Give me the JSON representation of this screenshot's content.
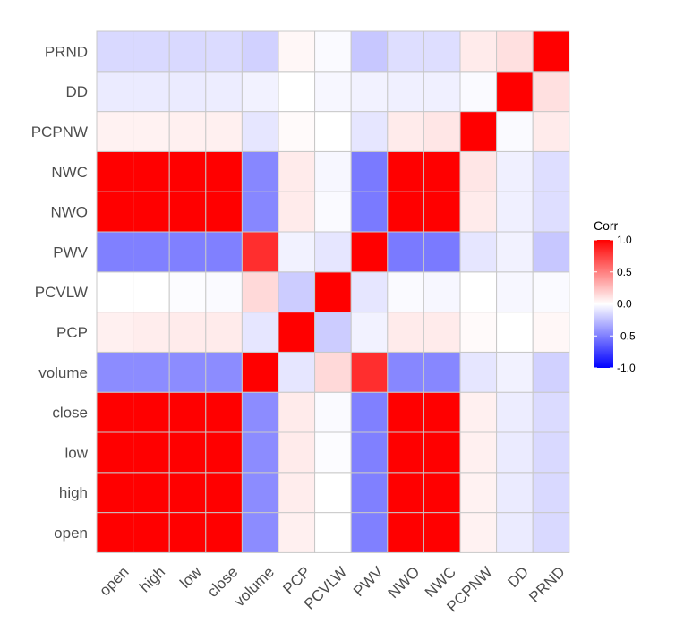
{
  "chart_data": {
    "type": "heatmap",
    "variables": [
      "open",
      "high",
      "low",
      "close",
      "volume",
      "PCP",
      "PCVLW",
      "PWV",
      "NWO",
      "NWC",
      "PCPNW",
      "DD",
      "PRND"
    ],
    "matrix": [
      [
        1.0,
        1.0,
        1.0,
        1.0,
        -0.45,
        0.06,
        0.0,
        -0.5,
        1.0,
        1.0,
        0.05,
        -0.08,
        -0.15
      ],
      [
        1.0,
        1.0,
        1.0,
        1.0,
        -0.45,
        0.07,
        0.0,
        -0.5,
        1.0,
        1.0,
        0.05,
        -0.08,
        -0.15
      ],
      [
        1.0,
        1.0,
        1.0,
        1.0,
        -0.45,
        0.08,
        -0.01,
        -0.5,
        1.0,
        1.0,
        0.06,
        -0.08,
        -0.15
      ],
      [
        1.0,
        1.0,
        1.0,
        1.0,
        -0.45,
        0.08,
        -0.02,
        -0.5,
        1.0,
        1.0,
        0.06,
        -0.07,
        -0.14
      ],
      [
        -0.45,
        -0.45,
        -0.45,
        -0.45,
        1.0,
        -0.1,
        0.15,
        0.82,
        -0.47,
        -0.47,
        -0.1,
        -0.05,
        -0.18
      ],
      [
        0.06,
        0.07,
        0.08,
        0.08,
        -0.1,
        1.0,
        -0.2,
        -0.05,
        0.08,
        0.08,
        0.02,
        0.0,
        0.03
      ],
      [
        0.0,
        0.0,
        -0.01,
        -0.02,
        0.15,
        -0.2,
        1.0,
        -0.1,
        -0.02,
        -0.03,
        0.0,
        -0.03,
        -0.02
      ],
      [
        -0.5,
        -0.5,
        -0.5,
        -0.5,
        0.82,
        -0.05,
        -0.1,
        1.0,
        -0.52,
        -0.52,
        -0.1,
        -0.05,
        -0.22
      ],
      [
        1.0,
        1.0,
        1.0,
        1.0,
        -0.47,
        0.08,
        -0.02,
        -0.52,
        1.0,
        1.0,
        0.08,
        -0.06,
        -0.13
      ],
      [
        1.0,
        1.0,
        1.0,
        1.0,
        -0.47,
        0.08,
        -0.03,
        -0.52,
        1.0,
        1.0,
        0.1,
        -0.06,
        -0.13
      ],
      [
        0.05,
        0.05,
        0.06,
        0.06,
        -0.1,
        0.02,
        0.0,
        -0.1,
        0.08,
        0.1,
        1.0,
        -0.02,
        0.08
      ],
      [
        -0.08,
        -0.08,
        -0.08,
        -0.07,
        -0.05,
        0.0,
        -0.03,
        -0.05,
        -0.06,
        -0.06,
        -0.02,
        1.0,
        0.12
      ],
      [
        -0.15,
        -0.15,
        -0.15,
        -0.14,
        -0.18,
        0.03,
        -0.02,
        -0.22,
        -0.13,
        -0.13,
        0.08,
        0.12,
        1.0
      ]
    ],
    "color_scale": {
      "low": "#0000ff",
      "mid": "#ffffff",
      "high": "#ff0000",
      "limits": [
        -1,
        1
      ]
    },
    "legend": {
      "title": "Corr",
      "ticks": [
        {
          "value": 1.0,
          "label": "1.0"
        },
        {
          "value": 0.5,
          "label": "0.5"
        },
        {
          "value": 0.0,
          "label": "0.0"
        },
        {
          "value": -0.5,
          "label": "-0.5"
        },
        {
          "value": -1.0,
          "label": "-1.0"
        }
      ],
      "position": "right"
    },
    "grid_color": "#c8c8c8",
    "x_tick_angle": -45
  }
}
